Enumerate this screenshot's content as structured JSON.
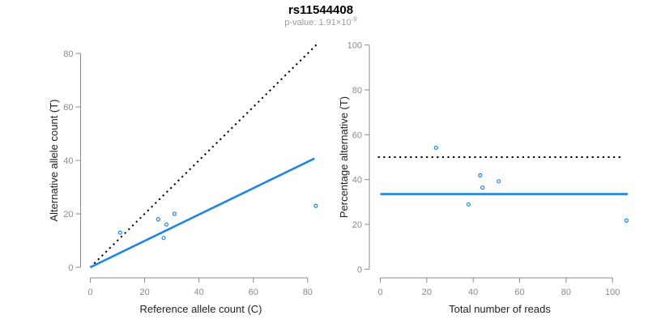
{
  "header": {
    "title": "rs11544408",
    "pvalue_label": "p-value: 1.91×10",
    "pvalue_exponent": "-9"
  },
  "colors": {
    "accent_blue": "#1E85E5",
    "axis_gray": "#8A8A8A",
    "dotted_black": "#000000",
    "label_black": "#222222",
    "subtitle_gray": "#9A9A9A"
  },
  "chart_data": [
    {
      "type": "scatter",
      "panel": "left",
      "xlabel": "Reference allele count (C)",
      "ylabel": "Alternative allele count (T)",
      "xticks": [
        0,
        20,
        40,
        60,
        80
      ],
      "yticks": [
        0,
        20,
        40,
        60,
        80
      ],
      "xlim": [
        0,
        86
      ],
      "ylim": [
        0,
        86
      ],
      "grid": false,
      "legend": null,
      "points": [
        [
          11,
          13
        ],
        [
          25,
          18
        ],
        [
          27,
          11
        ],
        [
          28,
          16
        ],
        [
          31,
          20
        ],
        [
          83,
          23
        ]
      ],
      "lines": [
        {
          "name": "identity-line",
          "style": "dotted",
          "from": [
            0,
            0
          ],
          "to": [
            83.5,
            83.5
          ]
        },
        {
          "name": "regression-line",
          "style": "solid",
          "from": [
            0,
            0
          ],
          "to": [
            82.5,
            40.7
          ]
        }
      ]
    },
    {
      "type": "scatter",
      "panel": "right",
      "xlabel": "Total number of reads",
      "ylabel": "Percentage alternative (T)",
      "xticks": [
        0,
        20,
        40,
        60,
        80,
        100
      ],
      "yticks": [
        0,
        20,
        40,
        60,
        80,
        100
      ],
      "xlim": [
        0,
        110
      ],
      "ylim": [
        0,
        100
      ],
      "grid": false,
      "legend": null,
      "points": [
        [
          24,
          54.2
        ],
        [
          38,
          28.9
        ],
        [
          43,
          41.9
        ],
        [
          44,
          36.4
        ],
        [
          51,
          39.2
        ],
        [
          106,
          21.7
        ]
      ],
      "lines": [
        {
          "name": "expected-50pct-line",
          "style": "dotted",
          "from": [
            -1,
            50
          ],
          "to": [
            104,
            50
          ]
        },
        {
          "name": "mean-percentage-line",
          "style": "solid",
          "from": [
            0,
            33.5
          ],
          "to": [
            106.6,
            33.5
          ]
        }
      ]
    }
  ]
}
